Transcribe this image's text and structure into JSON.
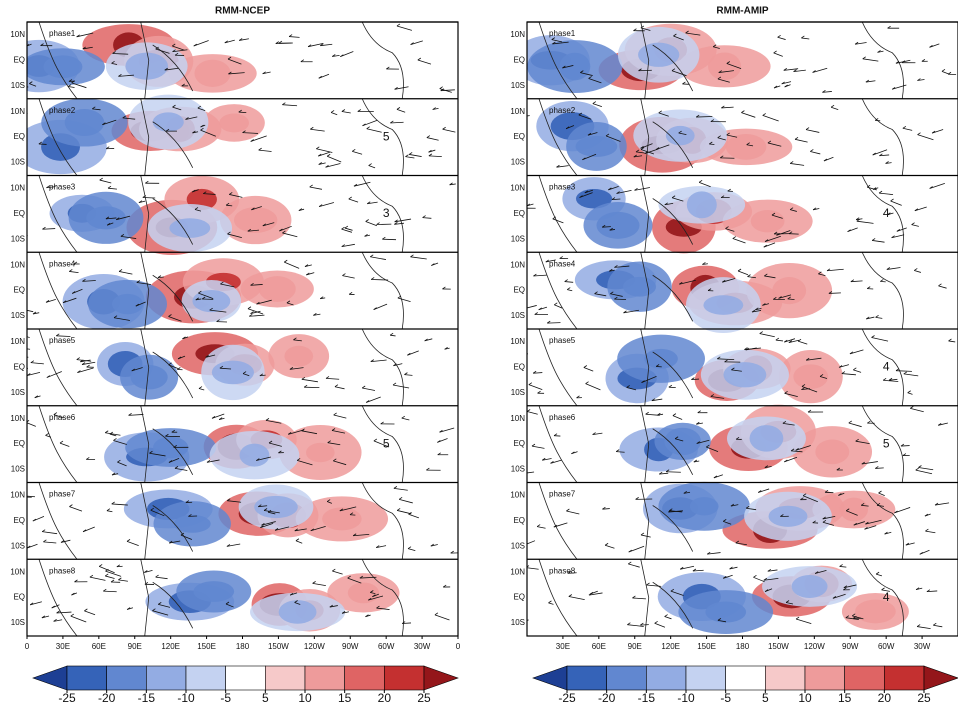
{
  "panels": [
    {
      "title": "RMM-NCEP",
      "phases": [
        "phase1",
        "phase2",
        "phase3",
        "phase4",
        "phase5",
        "phase6",
        "phase7",
        "phase8"
      ],
      "lat_labels": [
        "10N",
        "EQ",
        "10S"
      ],
      "lon_labels": [
        "0",
        "30E",
        "60E",
        "90E",
        "120E",
        "150E",
        "180",
        "150W",
        "120W",
        "90W",
        "60W",
        "30W",
        "0"
      ],
      "vector_refs": [
        {
          "phase": 2,
          "text": "5"
        },
        {
          "phase": 3,
          "text": "3"
        },
        {
          "phase": 6,
          "text": "5"
        }
      ]
    },
    {
      "title": "RMM-AMIP",
      "phases": [
        "phase1",
        "phase2",
        "phase3",
        "phase4",
        "phase5",
        "phase6",
        "phase7",
        "phase8"
      ],
      "lat_labels": [
        "10N",
        "EQ",
        "10S"
      ],
      "lon_labels": [
        "30E",
        "60E",
        "90E",
        "120E",
        "150E",
        "180",
        "150W",
        "120W",
        "90W",
        "60W",
        "30W"
      ],
      "vector_refs": [
        {
          "phase": 3,
          "text": "4"
        },
        {
          "phase": 5,
          "text": "4"
        },
        {
          "phase": 6,
          "text": "5"
        },
        {
          "phase": 8,
          "text": "4"
        }
      ]
    }
  ],
  "colorbar": {
    "levels": [
      -25,
      -20,
      -15,
      -10,
      -5,
      5,
      10,
      15,
      20,
      25
    ],
    "colors": [
      "#1d3f94",
      "#3563b8",
      "#6187d0",
      "#93ace3",
      "#c4d2f1",
      "#ffffff",
      "#f6c9c9",
      "#ee9b9b",
      "#df6464",
      "#c43030",
      "#94161a"
    ]
  }
}
